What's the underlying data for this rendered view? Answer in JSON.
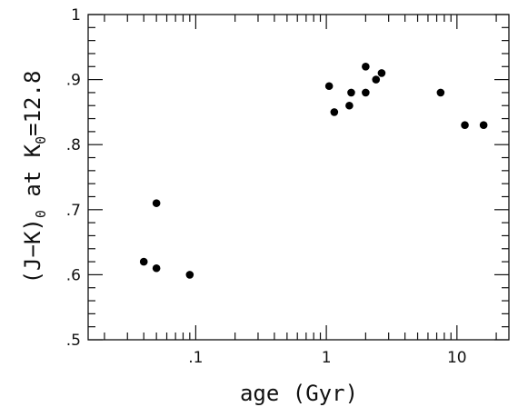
{
  "chart_data": {
    "type": "scatter",
    "xscale": "log",
    "xlim": [
      0.015,
      25
    ],
    "ylim": [
      0.5,
      1.0
    ],
    "xlabel": "age (Gyr)",
    "ylabel": {
      "part1": "(J−K)",
      "sub1": "0",
      "part2": " at K",
      "sub2": "0",
      "part3": "=12.8"
    },
    "x_tick_labels": [
      {
        "value": 0.1,
        "label": ".1"
      },
      {
        "value": 1,
        "label": "1"
      },
      {
        "value": 10,
        "label": "10"
      }
    ],
    "y_tick_labels": [
      {
        "value": 0.5,
        "label": ".5"
      },
      {
        "value": 0.6,
        "label": ".6"
      },
      {
        "value": 0.7,
        "label": ".7"
      },
      {
        "value": 0.8,
        "label": ".8"
      },
      {
        "value": 0.9,
        "label": ".9"
      },
      {
        "value": 1.0,
        "label": "1"
      }
    ],
    "points": [
      {
        "x": 0.04,
        "y": 0.62
      },
      {
        "x": 0.05,
        "y": 0.71
      },
      {
        "x": 0.05,
        "y": 0.61
      },
      {
        "x": 0.09,
        "y": 0.6
      },
      {
        "x": 1.05,
        "y": 0.89
      },
      {
        "x": 1.15,
        "y": 0.85
      },
      {
        "x": 1.5,
        "y": 0.86
      },
      {
        "x": 1.55,
        "y": 0.88
      },
      {
        "x": 2.0,
        "y": 0.88
      },
      {
        "x": 2.0,
        "y": 0.92
      },
      {
        "x": 2.4,
        "y": 0.9
      },
      {
        "x": 2.65,
        "y": 0.91
      },
      {
        "x": 7.5,
        "y": 0.88
      },
      {
        "x": 11.5,
        "y": 0.83
      },
      {
        "x": 16,
        "y": 0.83
      }
    ]
  }
}
